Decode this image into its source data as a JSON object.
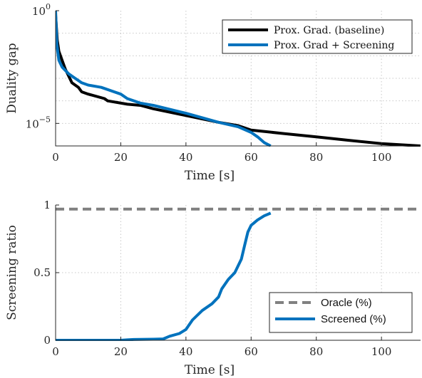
{
  "chart_data": [
    {
      "type": "line",
      "xlabel": "Time [s]",
      "ylabel": "Duality gap",
      "yscale": "log",
      "xlim": [
        0,
        112
      ],
      "ylim_log10": [
        -6,
        0
      ],
      "x_ticks": [
        {
          "value": 0,
          "label": "0"
        },
        {
          "value": 20,
          "label": "20"
        },
        {
          "value": 40,
          "label": "40"
        },
        {
          "value": 60,
          "label": "60"
        },
        {
          "value": 80,
          "label": "80"
        },
        {
          "value": 100,
          "label": "100"
        }
      ],
      "y_ticks": [
        {
          "value": 0,
          "base": "10",
          "exp": "0"
        },
        {
          "value": -5,
          "base": "10",
          "exp": "−5"
        }
      ],
      "grid": true,
      "legend_position": "top-right",
      "series": [
        {
          "name": "Prox. Grad. (baseline)",
          "color": "#000000",
          "style": "solid",
          "x": [
            0,
            0.5,
            1,
            2,
            3,
            4,
            5,
            7,
            8,
            10,
            15,
            16,
            22,
            26,
            30,
            40,
            50,
            56,
            60,
            70,
            80,
            90,
            100,
            112
          ],
          "y_log10": [
            -0.2,
            -1.3,
            -1.8,
            -2.2,
            -2.6,
            -2.9,
            -3.2,
            -3.4,
            -3.6,
            -3.7,
            -3.9,
            -4.0,
            -4.15,
            -4.2,
            -4.35,
            -4.65,
            -4.95,
            -5.1,
            -5.3,
            -5.45,
            -5.6,
            -5.75,
            -5.9,
            -6.0
          ]
        },
        {
          "name": "Prox. Grad + Screening",
          "color": "#0072BD",
          "style": "solid",
          "x": [
            0,
            0.4,
            1,
            2,
            4,
            6,
            8,
            10,
            14,
            20,
            22,
            26,
            30,
            40,
            50,
            56,
            60,
            62,
            64,
            66
          ],
          "y_log10": [
            0,
            -1.5,
            -2.2,
            -2.5,
            -2.8,
            -3.0,
            -3.2,
            -3.3,
            -3.4,
            -3.7,
            -3.9,
            -4.1,
            -4.2,
            -4.55,
            -4.95,
            -5.15,
            -5.4,
            -5.6,
            -5.85,
            -6.0
          ]
        }
      ]
    },
    {
      "type": "line",
      "xlabel": "Time [s]",
      "ylabel": "Screening ratio",
      "xlim": [
        0,
        112
      ],
      "ylim": [
        0,
        1
      ],
      "x_ticks": [
        {
          "value": 0,
          "label": "0"
        },
        {
          "value": 20,
          "label": "20"
        },
        {
          "value": 40,
          "label": "40"
        },
        {
          "value": 60,
          "label": "60"
        },
        {
          "value": 80,
          "label": "80"
        },
        {
          "value": 100,
          "label": "100"
        }
      ],
      "y_ticks": [
        {
          "value": 0,
          "label": "0"
        },
        {
          "value": 0.5,
          "label": "0.5"
        },
        {
          "value": 1,
          "label": "1"
        }
      ],
      "grid": true,
      "legend_position": "bottom-right",
      "series": [
        {
          "name": "Oracle (%)",
          "color": "#808080",
          "style": "dashed",
          "x": [
            0,
            112
          ],
          "y": [
            0.97,
            0.97
          ]
        },
        {
          "name": "Screened (%)",
          "color": "#0072BD",
          "style": "solid",
          "x": [
            0,
            10,
            20,
            22,
            24,
            30,
            33,
            35,
            38,
            40,
            42,
            45,
            48,
            50,
            51,
            53,
            55,
            56,
            57,
            58,
            59,
            60,
            61,
            62,
            64,
            66
          ],
          "y": [
            0,
            0,
            0,
            0.003,
            0.006,
            0.008,
            0.01,
            0.03,
            0.05,
            0.08,
            0.15,
            0.22,
            0.27,
            0.32,
            0.38,
            0.45,
            0.5,
            0.55,
            0.6,
            0.7,
            0.8,
            0.85,
            0.87,
            0.89,
            0.92,
            0.94
          ]
        }
      ]
    }
  ]
}
